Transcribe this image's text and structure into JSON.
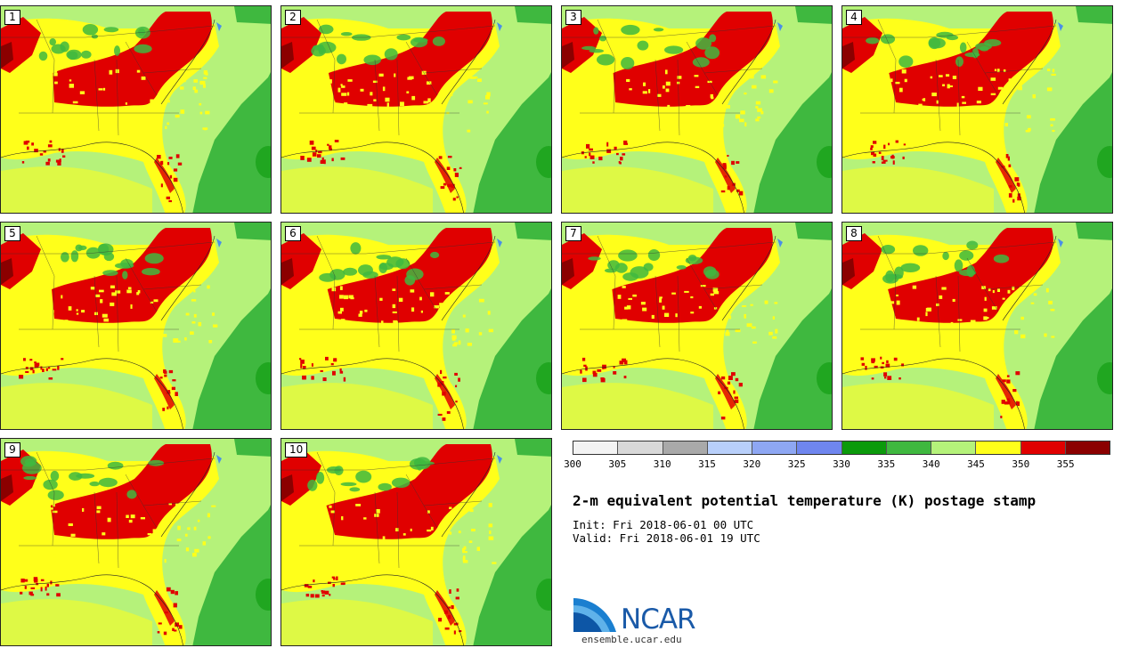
{
  "panels": [
    {
      "label": "1"
    },
    {
      "label": "2"
    },
    {
      "label": "3"
    },
    {
      "label": "4"
    },
    {
      "label": "5"
    },
    {
      "label": "6"
    },
    {
      "label": "7"
    },
    {
      "label": "8"
    },
    {
      "label": "9"
    },
    {
      "label": "10"
    }
  ],
  "colorbar": {
    "colors": [
      "#f3f3f3",
      "#d8d8d8",
      "#a9a9a9",
      "#b8cffa",
      "#8ea7f3",
      "#6f86ef",
      "#0b9a0b",
      "#3fb83f",
      "#b5f27a",
      "#ffff1a",
      "#e00000",
      "#8b0000"
    ],
    "ticks": [
      "300",
      "305",
      "310",
      "315",
      "320",
      "325",
      "330",
      "335",
      "340",
      "345",
      "350",
      "355"
    ]
  },
  "map_colors": {
    "land_cool": "#b5f27a",
    "warm": "#ffff1a",
    "hot": "#e00000",
    "very_hot": "#8b0000",
    "ocean": "#3fb83f",
    "ocean_dark": "#0b9a0b"
  },
  "title": "2-m equivalent potential temperature (K) postage stamp",
  "init": "Init: Fri 2018-06-01 00 UTC",
  "valid": "Valid: Fri 2018-06-01 19 UTC",
  "logo": {
    "text": "NCAR",
    "url": "ensemble.ucar.edu"
  }
}
